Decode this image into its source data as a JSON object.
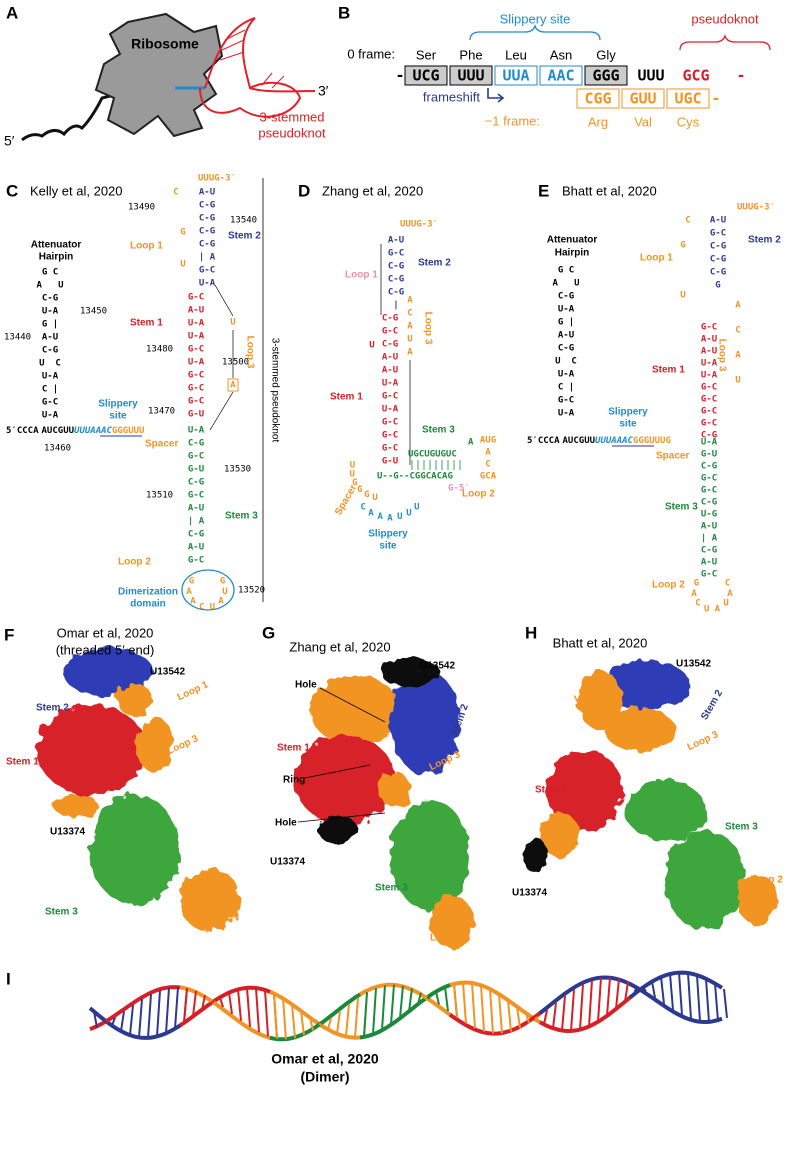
{
  "A": {
    "letter": "A",
    "ribosome": "Ribosome",
    "five_prime": "5′",
    "three_prime": "3′",
    "pseudoknot": [
      "3-stemmed",
      "pseudoknot"
    ]
  },
  "B": {
    "letter": "B",
    "slippery_site": "Slippery site",
    "pseudoknot": "pseudoknot",
    "zero_frame": "0 frame:",
    "zero_codons": [
      "Ser",
      "Phe",
      "Leu",
      "Asn",
      "Gly"
    ],
    "zero_seq": [
      "-",
      "UCG",
      "UUU",
      "UUA",
      "AAC",
      "GGG",
      "UUU",
      "GCG",
      "-"
    ],
    "frameshift": "frameshift",
    "minus_frame": "−1 frame:",
    "minus_codons": [
      "Arg",
      "Val",
      "Cys"
    ],
    "minus_seq": [
      "CGG",
      "GUU",
      "UGC",
      "-"
    ]
  },
  "C": {
    "letter": "C",
    "title": "Kelly et al, 2020",
    "side_label": "3-stemmed pseudoknot",
    "three_end": "UUUG-3′",
    "top_c": "C",
    "stem2": [
      "A-U",
      "C-G",
      "C-G",
      "C-G",
      "C-G",
      "| A",
      "G-C",
      "U-A"
    ],
    "stem2_label": "Stem 2",
    "loop1": [
      "G",
      "U"
    ],
    "loop1_label": "Loop 1",
    "stem1": [
      "G-C",
      "A-U",
      "U-A",
      "U-A",
      "G-C",
      "U-A",
      "G-C",
      "G-C",
      "G-C",
      "G-U"
    ],
    "stem1_label": "Stem 1",
    "loop3": [
      "U",
      "A"
    ],
    "loop3_label": "Loop 3",
    "stem3": [
      "U-A",
      "C-G",
      "G-C",
      "G-U",
      "C-G",
      "G-C",
      "A-U",
      "| A",
      "C-G",
      "A-U",
      "G-C"
    ],
    "stem3_label": "Stem 3",
    "loop2": [
      "G",
      "A",
      "A",
      "C",
      "U",
      "A",
      "U",
      "G"
    ],
    "loop2_label": "Loop 2",
    "dimerization": [
      "Dimerization",
      "domain"
    ],
    "attenuator": [
      "Attenuator",
      "Hairpin"
    ],
    "hairpin": [
      "G C",
      "A   U",
      "C-G",
      "U-A",
      "G |",
      "A-U",
      "C-G",
      "U  C",
      "U-A",
      "C |",
      "G-C",
      "U-A"
    ],
    "five_seq": [
      "5′CCCA",
      "AUCGUU",
      "UUUAAAC",
      "GGGUUU"
    ],
    "slippery": [
      "Slippery",
      "site"
    ],
    "spacer": "Spacer",
    "numbers": [
      "13490",
      "13540",
      "13450",
      "13440",
      "13480",
      "13500",
      "13470",
      "13460",
      "13530",
      "13510",
      "13520"
    ]
  },
  "D": {
    "letter": "D",
    "title": "Zhang et al, 2020",
    "three_end": "UUUG-3′",
    "stem2": [
      "A-U",
      "G-C",
      "C-G",
      "C-G",
      "C-G",
      "|"
    ],
    "stem2_label": "Stem 2",
    "loop1_label": "Loop 1",
    "loop3": [
      "A",
      "C",
      "A",
      "U",
      "A"
    ],
    "loop3_label": "Loop 3",
    "stem1": [
      "C-G",
      "G-C",
      "C-G",
      "A-U",
      "A-U",
      "U-A",
      "G-C",
      "U-A",
      "G-C",
      "G-C",
      "G-C",
      "G-U"
    ],
    "bulge": "U",
    "stem1_label": "Stem 1",
    "stem3_top": "UGCUGUGUC",
    "stem3_bottom": "U--G--CGGCACAG",
    "stem3_a": "A",
    "stem3_label": "Stem 3",
    "loop2": [
      "AUG",
      "A",
      "C",
      "GCA"
    ],
    "loop2_label": "Loop 2",
    "five_end": "G-5′",
    "spacer_seq": [
      "U",
      "G",
      "G",
      "G",
      "U",
      "U"
    ],
    "spacer_label": "Spacer",
    "slippery_seq": [
      "C",
      "A",
      "A",
      "A",
      "U",
      "U",
      "U"
    ],
    "slippery": [
      "Slippery",
      "site"
    ]
  },
  "E": {
    "letter": "E",
    "title": "Bhatt et al, 2020",
    "three_end": "UUUG-3′",
    "top_c": "C",
    "stem2": [
      "A-U",
      "G-C",
      "C-G",
      "C-G",
      "C-G",
      "G"
    ],
    "stem2_label": "Stem 2",
    "loop1": [
      "G",
      "U"
    ],
    "loop1_label": "Loop 1",
    "attenuator": [
      "Attenuator",
      "Hairpin"
    ],
    "hairpin": [
      "G C",
      "A   U",
      "C-G",
      "U-A",
      "G |",
      "A-U",
      "C-G",
      "U  C",
      "U-A",
      "C |",
      "G-C",
      "U-A"
    ],
    "stem1": [
      "G-C",
      "A-U",
      "A-U",
      "U-A",
      "U-A",
      "G-C",
      "G-C",
      "G-C",
      "G-C",
      "C-G"
    ],
    "stem1_label": "Stem 1",
    "loop3": [
      "A",
      "C",
      "A",
      "U"
    ],
    "loop3_label": "Loop 3",
    "five_seq": [
      "5′CCCA",
      "AUCGUU",
      "UUUAAAC",
      "GGGUUUG"
    ],
    "slippery": [
      "Slippery",
      "site"
    ],
    "spacer": "Spacer",
    "stem3": [
      "U-A",
      "G-U",
      "C-G",
      "G-C",
      "G-C",
      "C-G",
      "U-G",
      "A-U",
      "| A",
      "C-G",
      "A-U",
      "G-C"
    ],
    "stem3_label": "Stem 3",
    "loop2": [
      "G",
      "A",
      "C",
      "U",
      "A",
      "U",
      "A",
      "C"
    ],
    "loop2_label": "Loop 2"
  },
  "F": {
    "letter": "F",
    "title": [
      "Omar et al, 2020",
      "(threaded 5′ end)"
    ],
    "u_top": "U13542",
    "stem2": "Stem 2",
    "loop1": "Loop 1",
    "loop3": "Loop 3",
    "stem1": "Stem 1",
    "u_bottom": "U13374",
    "loop2": "Loop 2",
    "stem3": "Stem 3"
  },
  "G": {
    "letter": "G",
    "title": "Zhang et al, 2020",
    "u_top": "U13542",
    "hole_top": "Hole",
    "stem2": "Stem 2",
    "stem1": "Stem 1",
    "loop3": "Loop 3",
    "ring": "Ring",
    "hole_bottom": "Hole",
    "u_bottom": "U13374",
    "stem3": "Stem 3",
    "loop2": "Loop 2"
  },
  "H": {
    "letter": "H",
    "title": "Bhatt et al, 2020",
    "u_top": "U13542",
    "loop1": "Loop 1",
    "stem2": "Stem 2",
    "loop3": "Loop 3",
    "stem1": "Stem 1",
    "stem3": "Stem 3",
    "u_bottom": "U13374",
    "loop2": "Loop 2"
  },
  "I": {
    "letter": "I",
    "label": [
      "Omar et al, 2020",
      "(Dimer)"
    ]
  }
}
